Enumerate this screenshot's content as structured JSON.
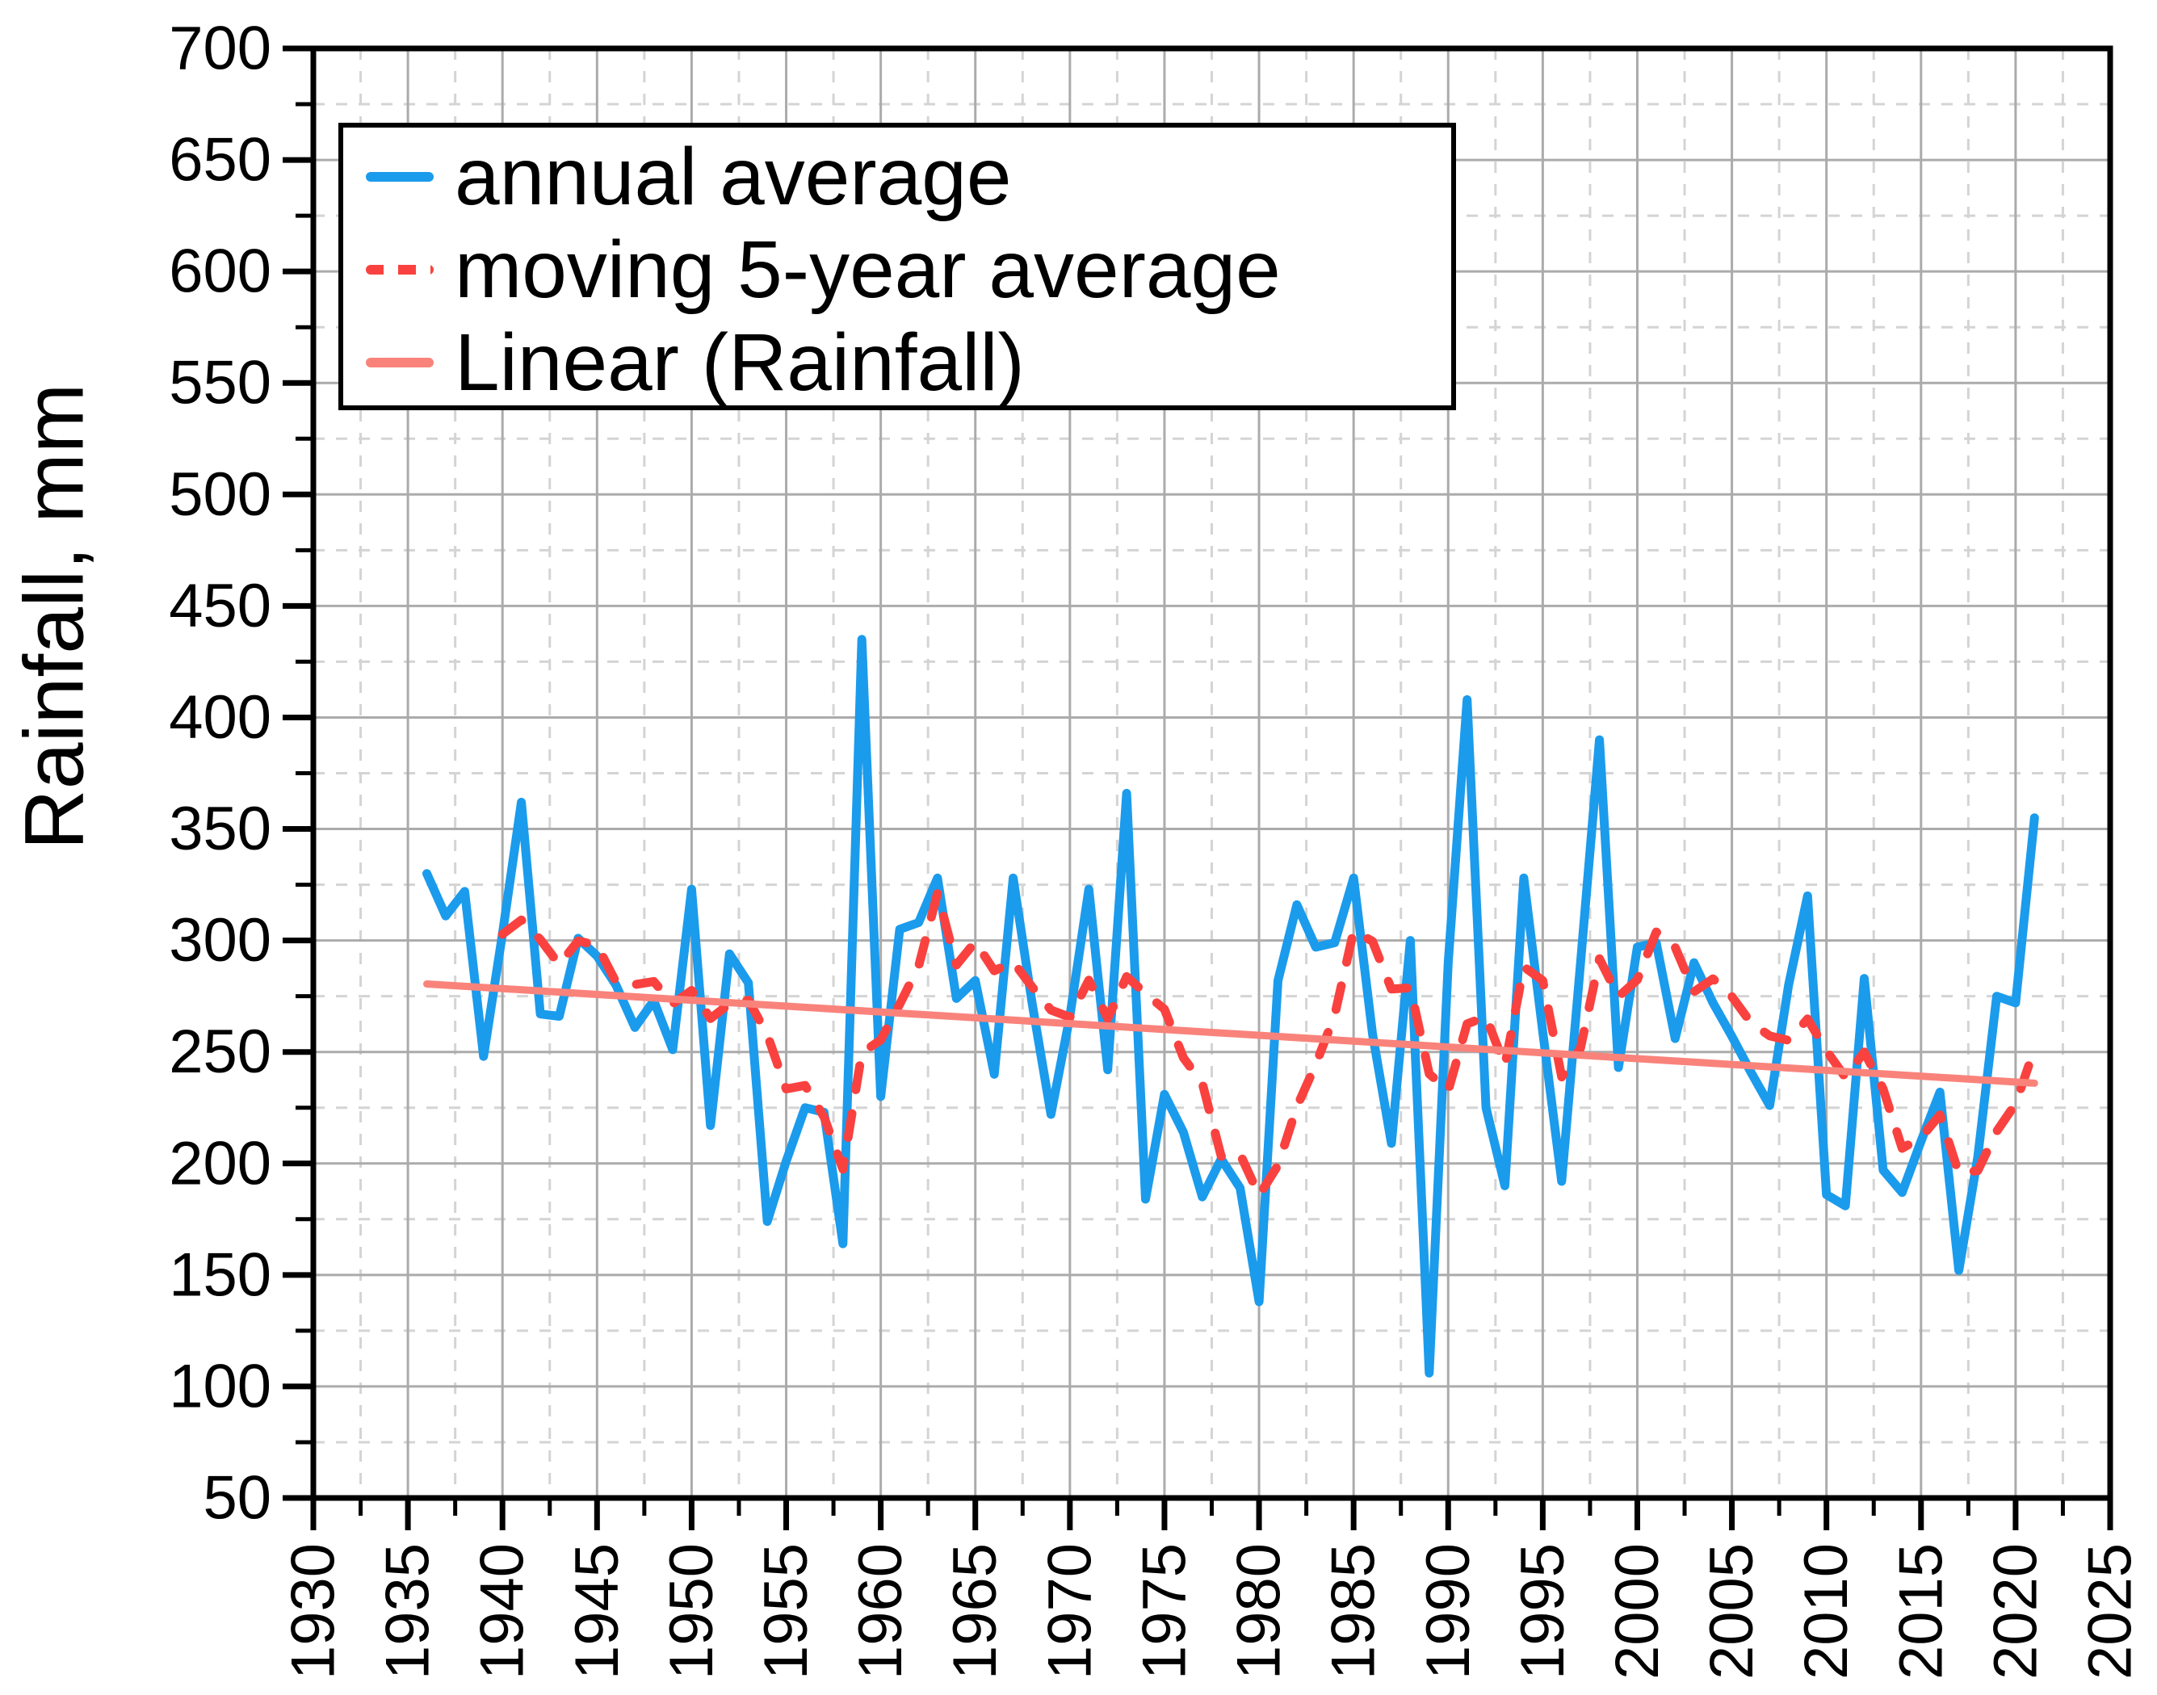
{
  "y_axis": {
    "label": "Rainfall, mm",
    "min": 50,
    "max": 700,
    "major_tick_step": 50,
    "minor_tick_step": 25,
    "tick_labels": [
      50,
      100,
      150,
      200,
      250,
      300,
      350,
      400,
      450,
      500,
      550,
      600,
      650,
      700
    ]
  },
  "x_axis": {
    "min": 1930,
    "max": 2025,
    "major_tick_step": 5,
    "minor_tick_step": 2.5,
    "tick_labels": [
      1930,
      1935,
      1940,
      1945,
      1950,
      1955,
      1960,
      1965,
      1970,
      1975,
      1980,
      1985,
      1990,
      1995,
      2000,
      2005,
      2010,
      2015,
      2020,
      2025
    ]
  },
  "legend": {
    "position": "top-left",
    "items": [
      {
        "label": "annual average",
        "color": "#1B9BEC",
        "line_style": "solid"
      },
      {
        "label": "moving 5-year average",
        "color": "#F9423F",
        "line_style": "dashed"
      },
      {
        "label": "Linear (Rainfall)",
        "color": "#F9837B",
        "line_style": "solid"
      }
    ]
  },
  "chart_data": {
    "type": "line",
    "title": "",
    "xlabel": "",
    "ylabel": "Rainfall, mm",
    "x_range": [
      1930,
      2025
    ],
    "y_range": [
      50,
      700
    ],
    "grid": {
      "major": "solid every 50 mm / 5 yr",
      "minor": "dashed every 25 mm / 2.5 yr",
      "major_color": "#ABABAB",
      "minor_color": "#D4D4D4"
    },
    "frame_color": "#000000",
    "legend_position": "top-left",
    "series": [
      {
        "name": "annual average",
        "color": "#1B9BEC",
        "style": "solid",
        "start_year": 1936,
        "x_step": 1,
        "values": [
          330,
          311,
          322,
          248,
          303,
          362,
          267,
          266,
          301,
          293,
          280,
          261,
          273,
          251,
          323,
          217,
          294,
          281,
          174,
          201,
          225,
          223,
          164,
          435,
          230,
          305,
          308,
          328,
          274,
          282,
          240,
          328,
          272,
          222,
          266,
          323,
          242,
          366,
          184,
          231,
          214,
          185,
          202,
          189,
          138,
          282,
          316,
          297,
          299,
          328,
          258,
          209,
          300,
          106,
          290,
          408,
          225,
          190,
          328,
          259,
          192,
          290,
          390,
          243,
          297,
          299,
          256,
          290,
          272,
          257,
          241,
          226,
          280,
          320,
          186,
          181,
          283,
          197,
          187,
          210,
          232,
          152,
          203,
          275,
          272,
          355
        ]
      },
      {
        "name": "moving 5-year average",
        "color": "#F9423F",
        "style": "dashed",
        "start_year": 1940,
        "x_step": 1,
        "values": [
          302.8,
          309.2,
          300.4,
          289.2,
          299.8,
          297.8,
          281.4,
          280.2,
          281.6,
          271.6,
          277.6,
          265,
          271.6,
          273.2,
          257.8,
          233.4,
          235,
          220.8,
          197.4,
          249.6,
          255.4,
          271.4,
          288.4,
          321.2,
          289,
          299.4,
          286.4,
          290.4,
          279.2,
          268.8,
          265.6,
          282.2,
          265,
          283.8,
          276.2,
          269.2,
          247.4,
          236,
          203.2,
          204.2,
          185.6,
          199.2,
          225.4,
          244.4,
          266.4,
          304.4,
          299.6,
          278.2,
          278.8,
          240.2,
          232.6,
          262.6,
          265.8,
          243.8,
          288.2,
          282,
          238.8,
          251.8,
          291.8,
          274.8,
          282.4,
          303.8,
          297,
          277,
          282.8,
          274.8,
          263.2,
          257.2,
          255.2,
          264.8,
          250.6,
          238.6,
          250,
          233.4,
          206.8,
          211.6,
          221.8,
          195.6,
          196.8,
          214.4,
          226.8,
          251.4
        ]
      },
      {
        "name": "Linear (Rainfall)",
        "color": "#F9837B",
        "style": "solid",
        "trend": true,
        "x": [
          1936,
          2021
        ],
        "y": [
          280.5,
          236
        ]
      }
    ]
  }
}
